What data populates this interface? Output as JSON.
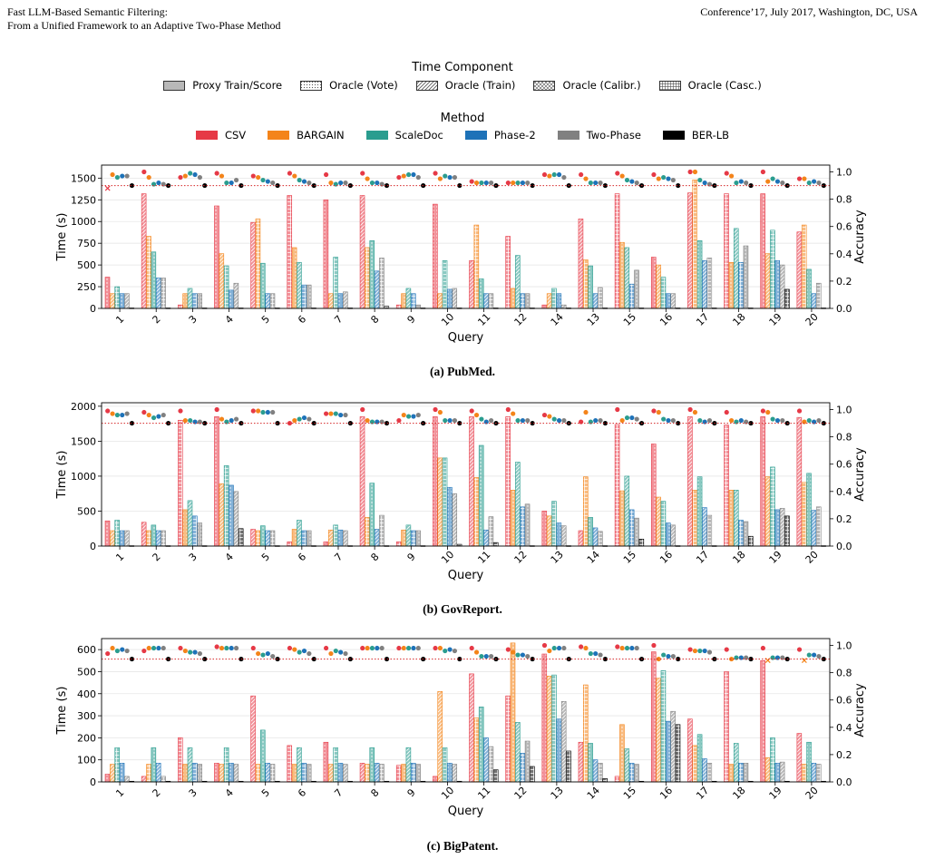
{
  "header": {
    "left_line1": "Fast LLM-Based Semantic Filtering:",
    "left_line2": "From a Unified Framework to an Adaptive Two-Phase Method",
    "right": "Conference’17, July 2017, Washington, DC, USA"
  },
  "legend_time": {
    "title": "Time Component",
    "items": [
      {
        "label": "Proxy Train/Score",
        "pattern": "solid"
      },
      {
        "label": "Oracle (Vote)",
        "pattern": "dots"
      },
      {
        "label": "Oracle (Train)",
        "pattern": "diag"
      },
      {
        "label": "Oracle (Calibr.)",
        "pattern": "xhatch"
      },
      {
        "label": "Oracle (Casc.)",
        "pattern": "grid"
      }
    ]
  },
  "legend_method": {
    "title": "Method",
    "items": [
      {
        "label": "CSV",
        "color": "#e63946"
      },
      {
        "label": "BARGAIN",
        "color": "#f4841a"
      },
      {
        "label": "ScaleDoc",
        "color": "#2a9d8f"
      },
      {
        "label": "Phase-2",
        "color": "#1d72b8"
      },
      {
        "label": "Two-Phase",
        "color": "#808080"
      },
      {
        "label": "BER-LB",
        "color": "#000000"
      }
    ]
  },
  "chart_data": [
    {
      "type": "bar",
      "caption": "(a) PubMed.",
      "xlabel": "Query",
      "ylabel": "Time (s)",
      "y2label": "Accuracy",
      "ylim": [
        0,
        1650
      ],
      "yticks": [
        0,
        250,
        500,
        750,
        1000,
        1250,
        1500
      ],
      "y2lim": [
        0,
        1.05
      ],
      "y2ticks": [
        0.0,
        0.2,
        0.4,
        0.6,
        0.8,
        1.0
      ],
      "target_accuracy": 0.9,
      "categories": [
        "1",
        "2",
        "3",
        "4",
        "5",
        "6",
        "7",
        "8",
        "9",
        "10",
        "11",
        "12",
        "14",
        "13",
        "15",
        "16",
        "17",
        "18",
        "19",
        "20"
      ],
      "series": [
        {
          "name": "CSV",
          "values": [
            360,
            1320,
            40,
            1180,
            990,
            1300,
            1250,
            1300,
            40,
            1200,
            550,
            830,
            40,
            1030,
            1320,
            590,
            1330,
            1320,
            1320,
            880
          ]
        },
        {
          "name": "BARGAIN",
          "values": [
            170,
            830,
            170,
            630,
            1030,
            700,
            170,
            700,
            170,
            170,
            960,
            230,
            170,
            560,
            760,
            500,
            1480,
            530,
            630,
            960
          ]
        },
        {
          "name": "ScaleDoc",
          "values": [
            250,
            650,
            230,
            490,
            520,
            530,
            590,
            780,
            230,
            550,
            340,
            610,
            230,
            490,
            700,
            360,
            780,
            920,
            900,
            450
          ]
        },
        {
          "name": "Phase-2",
          "values": [
            170,
            350,
            170,
            210,
            170,
            270,
            170,
            430,
            170,
            220,
            170,
            170,
            170,
            170,
            280,
            170,
            550,
            530,
            550,
            170
          ]
        },
        {
          "name": "Two-Phase",
          "values": [
            170,
            350,
            170,
            290,
            170,
            270,
            190,
            580,
            40,
            230,
            170,
            170,
            40,
            240,
            440,
            170,
            580,
            720,
            500,
            290
          ]
        },
        {
          "name": "BER-LB",
          "values": [
            5,
            5,
            5,
            5,
            5,
            5,
            5,
            25,
            5,
            5,
            5,
            5,
            5,
            5,
            5,
            5,
            5,
            5,
            220,
            5
          ]
        }
      ],
      "accuracy": [
        {
          "name": "CSV",
          "values": [
            0.88,
            1.0,
            0.96,
            0.99,
            0.97,
            0.99,
            0.98,
            0.99,
            0.96,
            0.99,
            0.93,
            0.92,
            0.98,
            0.98,
            0.99,
            0.98,
            1.0,
            0.99,
            1.0,
            0.95
          ]
        },
        {
          "name": "BARGAIN",
          "values": [
            0.98,
            0.96,
            0.97,
            0.97,
            0.96,
            0.97,
            0.92,
            0.95,
            0.97,
            0.95,
            0.92,
            0.92,
            0.97,
            0.95,
            0.97,
            0.95,
            1.0,
            0.97,
            0.93,
            0.95
          ]
        },
        {
          "name": "ScaleDoc",
          "values": [
            0.96,
            0.91,
            0.99,
            0.92,
            0.94,
            0.94,
            0.91,
            0.92,
            0.98,
            0.97,
            0.92,
            0.92,
            0.98,
            0.92,
            0.94,
            0.96,
            0.94,
            0.92,
            0.95,
            0.92
          ]
        },
        {
          "name": "Phase-2",
          "values": [
            0.97,
            0.92,
            0.98,
            0.92,
            0.93,
            0.93,
            0.92,
            0.92,
            0.98,
            0.96,
            0.92,
            0.92,
            0.98,
            0.92,
            0.93,
            0.95,
            0.92,
            0.93,
            0.93,
            0.93
          ]
        },
        {
          "name": "Two-Phase",
          "values": [
            0.97,
            0.91,
            0.96,
            0.94,
            0.92,
            0.92,
            0.92,
            0.91,
            0.96,
            0.96,
            0.92,
            0.92,
            0.96,
            0.92,
            0.92,
            0.94,
            0.91,
            0.92,
            0.92,
            0.92
          ]
        },
        {
          "name": "BER-LB",
          "values": [
            0.9,
            0.9,
            0.9,
            0.9,
            0.9,
            0.9,
            0.9,
            0.9,
            0.9,
            0.9,
            0.9,
            0.9,
            0.9,
            0.9,
            0.9,
            0.9,
            0.9,
            0.9,
            0.9,
            0.9
          ]
        }
      ]
    },
    {
      "type": "bar",
      "caption": "(b) GovReport.",
      "xlabel": "Query",
      "ylabel": "Time (s)",
      "y2label": "Accuracy",
      "ylim": [
        0,
        2050
      ],
      "yticks": [
        0,
        500,
        1000,
        1500,
        2000
      ],
      "y2lim": [
        0,
        1.05
      ],
      "y2ticks": [
        0.0,
        0.2,
        0.4,
        0.6,
        0.8,
        1.0
      ],
      "target_accuracy": 0.9,
      "categories": [
        "1",
        "2",
        "3",
        "4",
        "5",
        "6",
        "7",
        "8",
        "9",
        "10",
        "11",
        "12",
        "13",
        "14",
        "15",
        "16",
        "17",
        "18",
        "19",
        "20"
      ],
      "series": [
        {
          "name": "CSV",
          "values": [
            360,
            340,
            1800,
            1850,
            240,
            60,
            60,
            1850,
            60,
            1850,
            1850,
            1850,
            500,
            220,
            1740,
            1460,
            1850,
            1730,
            1850,
            1840
          ]
        },
        {
          "name": "BARGAIN",
          "values": [
            220,
            220,
            520,
            890,
            220,
            240,
            230,
            410,
            230,
            1260,
            980,
            800,
            430,
            990,
            790,
            700,
            800,
            800,
            990,
            910
          ]
        },
        {
          "name": "ScaleDoc",
          "values": [
            370,
            300,
            650,
            1150,
            290,
            370,
            300,
            900,
            300,
            1260,
            1440,
            1200,
            640,
            410,
            1000,
            640,
            990,
            800,
            1130,
            1040
          ]
        },
        {
          "name": "Phase-2",
          "values": [
            220,
            220,
            430,
            870,
            220,
            220,
            230,
            240,
            220,
            840,
            230,
            560,
            330,
            260,
            520,
            330,
            550,
            370,
            520,
            510
          ]
        },
        {
          "name": "Two-Phase",
          "values": [
            220,
            220,
            330,
            780,
            220,
            220,
            220,
            440,
            220,
            750,
            420,
            600,
            290,
            210,
            400,
            300,
            440,
            350,
            540,
            560
          ]
        },
        {
          "name": "BER-LB",
          "values": [
            5,
            5,
            5,
            250,
            5,
            5,
            5,
            5,
            5,
            25,
            50,
            5,
            5,
            5,
            100,
            5,
            5,
            140,
            430,
            5
          ]
        }
      ],
      "accuracy": [
        {
          "name": "CSV",
          "values": [
            0.99,
            0.98,
            0.99,
            1.0,
            0.99,
            0.9,
            0.97,
            1.0,
            0.92,
            1.0,
            0.99,
            1.0,
            0.96,
            0.91,
            1.0,
            0.99,
            1.0,
            0.98,
            0.99,
            0.99
          ]
        },
        {
          "name": "BARGAIN",
          "values": [
            0.97,
            0.96,
            0.92,
            0.93,
            0.99,
            0.92,
            0.97,
            0.92,
            0.96,
            0.98,
            0.96,
            0.97,
            0.95,
            0.98,
            0.92,
            0.98,
            0.98,
            0.92,
            0.98,
            0.91
          ]
        },
        {
          "name": "ScaleDoc",
          "values": [
            0.96,
            0.94,
            0.92,
            0.91,
            0.98,
            0.93,
            0.97,
            0.91,
            0.95,
            0.92,
            0.93,
            0.92,
            0.93,
            0.91,
            0.94,
            0.93,
            0.92,
            0.91,
            0.93,
            0.92
          ]
        },
        {
          "name": "Phase-2",
          "values": [
            0.96,
            0.95,
            0.91,
            0.92,
            0.98,
            0.94,
            0.96,
            0.91,
            0.95,
            0.92,
            0.91,
            0.92,
            0.92,
            0.92,
            0.94,
            0.92,
            0.91,
            0.92,
            0.92,
            0.91
          ]
        },
        {
          "name": "Two-Phase",
          "values": [
            0.97,
            0.96,
            0.91,
            0.93,
            0.98,
            0.93,
            0.96,
            0.91,
            0.96,
            0.92,
            0.92,
            0.92,
            0.92,
            0.92,
            0.93,
            0.92,
            0.92,
            0.91,
            0.92,
            0.92
          ]
        },
        {
          "name": "BER-LB",
          "values": [
            0.9,
            0.9,
            0.9,
            0.9,
            0.9,
            0.9,
            0.9,
            0.9,
            0.9,
            0.9,
            0.9,
            0.9,
            0.9,
            0.9,
            0.9,
            0.9,
            0.9,
            0.9,
            0.9,
            0.9
          ]
        }
      ]
    },
    {
      "type": "bar",
      "caption": "(c) BigPatent.",
      "xlabel": "Query",
      "ylabel": "Time (s)",
      "y2label": "Accuracy",
      "ylim": [
        0,
        650
      ],
      "yticks": [
        0,
        100,
        200,
        300,
        400,
        500,
        600
      ],
      "y2lim": [
        0,
        1.05
      ],
      "y2ticks": [
        0.0,
        0.2,
        0.4,
        0.6,
        0.8,
        1.0
      ],
      "target_accuracy": 0.9,
      "categories": [
        "1",
        "2",
        "3",
        "4",
        "5",
        "6",
        "7",
        "8",
        "9",
        "10",
        "11",
        "12",
        "13",
        "14",
        "15",
        "16",
        "17",
        "18",
        "19",
        "20"
      ],
      "series": [
        {
          "name": "CSV",
          "values": [
            35,
            25,
            200,
            85,
            390,
            165,
            180,
            85,
            75,
            25,
            490,
            390,
            580,
            180,
            25,
            590,
            285,
            500,
            550,
            220
          ]
        },
        {
          "name": "BARGAIN",
          "values": [
            80,
            80,
            80,
            80,
            80,
            80,
            80,
            80,
            80,
            410,
            290,
            630,
            480,
            440,
            260,
            470,
            165,
            80,
            110,
            80
          ]
        },
        {
          "name": "ScaleDoc",
          "values": [
            155,
            155,
            155,
            155,
            235,
            155,
            155,
            155,
            155,
            155,
            340,
            270,
            485,
            175,
            150,
            505,
            215,
            175,
            200,
            180
          ]
        },
        {
          "name": "Phase-2",
          "values": [
            85,
            85,
            85,
            85,
            85,
            85,
            85,
            85,
            85,
            85,
            200,
            130,
            285,
            100,
            85,
            275,
            105,
            85,
            85,
            85
          ]
        },
        {
          "name": "Two-Phase",
          "values": [
            25,
            25,
            80,
            80,
            80,
            80,
            80,
            80,
            80,
            80,
            160,
            185,
            365,
            85,
            80,
            320,
            85,
            85,
            90,
            80
          ]
        },
        {
          "name": "BER-LB",
          "values": [
            3,
            3,
            3,
            3,
            3,
            3,
            3,
            3,
            3,
            3,
            55,
            70,
            140,
            15,
            3,
            260,
            3,
            3,
            3,
            3
          ]
        }
      ],
      "accuracy": [
        {
          "name": "CSV",
          "values": [
            0.94,
            0.96,
            0.98,
            0.99,
            0.98,
            0.98,
            0.98,
            0.98,
            0.98,
            0.98,
            0.98,
            0.97,
            1.0,
            0.99,
            0.99,
            1.0,
            0.97,
            0.97,
            0.98,
            0.97
          ]
        },
        {
          "name": "BARGAIN",
          "values": [
            0.98,
            0.98,
            0.96,
            0.98,
            0.94,
            0.97,
            0.94,
            0.98,
            0.98,
            0.98,
            0.95,
            0.95,
            0.96,
            0.98,
            0.98,
            0.9,
            0.96,
            0.9,
            0.89,
            0.89
          ]
        },
        {
          "name": "ScaleDoc",
          "values": [
            0.96,
            0.98,
            0.95,
            0.98,
            0.93,
            0.95,
            0.96,
            0.98,
            0.98,
            0.96,
            0.92,
            0.93,
            0.98,
            0.94,
            0.98,
            0.93,
            0.96,
            0.91,
            0.91,
            0.93
          ]
        },
        {
          "name": "Phase-2",
          "values": [
            0.97,
            0.98,
            0.95,
            0.98,
            0.94,
            0.96,
            0.95,
            0.98,
            0.98,
            0.97,
            0.92,
            0.93,
            0.98,
            0.94,
            0.98,
            0.92,
            0.96,
            0.91,
            0.91,
            0.93
          ]
        },
        {
          "name": "Two-Phase",
          "values": [
            0.96,
            0.98,
            0.94,
            0.98,
            0.92,
            0.94,
            0.94,
            0.98,
            0.98,
            0.96,
            0.92,
            0.92,
            0.98,
            0.93,
            0.98,
            0.92,
            0.95,
            0.91,
            0.91,
            0.92
          ]
        },
        {
          "name": "BER-LB",
          "values": [
            0.9,
            0.9,
            0.9,
            0.9,
            0.9,
            0.9,
            0.9,
            0.9,
            0.9,
            0.9,
            0.9,
            0.9,
            0.9,
            0.9,
            0.9,
            0.9,
            0.9,
            0.9,
            0.9,
            0.9
          ]
        }
      ]
    }
  ]
}
